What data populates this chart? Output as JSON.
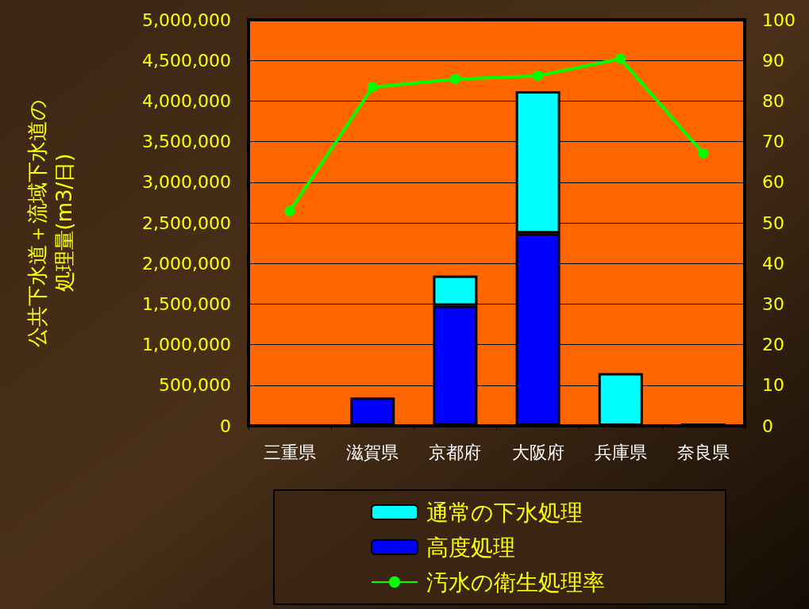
{
  "chart_data": {
    "type": "bar",
    "stacked": true,
    "ylabel": "公共下水道＋流域下水道の処理量(m3/日)",
    "categories": [
      "三重県",
      "滋賀県",
      "京都府",
      "大阪府",
      "兵庫県",
      "奈良県"
    ],
    "series": [
      {
        "name": "高度処理",
        "color": "#0000ff",
        "values": [
          0,
          350000,
          1480000,
          2370000,
          0,
          30000
        ]
      },
      {
        "name": "通常の下水処理",
        "color": "#00ffff",
        "values": [
          0,
          0,
          370000,
          1750000,
          650000,
          0
        ]
      },
      {
        "name": "汚水の衛生処理率",
        "type": "line",
        "axis": "y2",
        "color": "#00ff00",
        "values": [
          52.9,
          83.4,
          85.4,
          86.2,
          90.4,
          67.1
        ]
      }
    ],
    "ylim": [
      0,
      5000000
    ],
    "yticks": [
      {
        "value": 0,
        "label": "0"
      },
      {
        "value": 500000,
        "label": "500,000"
      },
      {
        "value": 1000000,
        "label": "1,000,000"
      },
      {
        "value": 1500000,
        "label": "1,500,000"
      },
      {
        "value": 2000000,
        "label": "2,000,000"
      },
      {
        "value": 2500000,
        "label": "2,500,000"
      },
      {
        "value": 3000000,
        "label": "3,000,000"
      },
      {
        "value": 3500000,
        "label": "3,500,000"
      },
      {
        "value": 4000000,
        "label": "4,000,000"
      },
      {
        "value": 4500000,
        "label": "4,500,000"
      },
      {
        "value": 5000000,
        "label": "5,000,000"
      }
    ],
    "y2lim": [
      0,
      100
    ],
    "y2ticks": [
      0,
      10,
      20,
      30,
      40,
      50,
      60,
      70,
      80,
      90,
      100
    ],
    "grid": "y",
    "legend": "bottom",
    "marker": "circle",
    "line_style": "solid"
  }
}
